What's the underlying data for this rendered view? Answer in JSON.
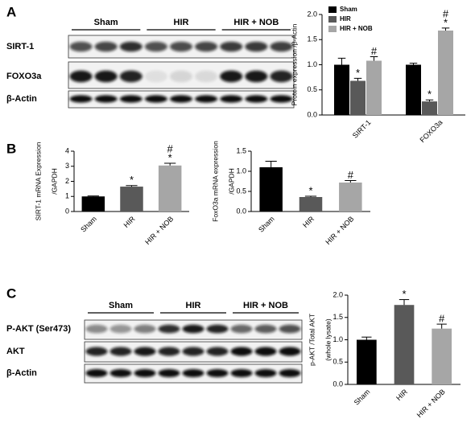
{
  "panels": [
    "A",
    "B",
    "C"
  ],
  "blots": [
    {
      "groups": [
        "Sham",
        "HIR",
        "HIR + NOB"
      ],
      "rows": [
        "SIRT-1",
        "FOXO3a",
        "β-Actin"
      ]
    },
    {
      "groups": [
        "Sham",
        "HIR",
        "HIR + NOB"
      ],
      "rows": [
        "P-AKT (Ser473)",
        "AKT",
        "β-Actin"
      ]
    }
  ],
  "chart_data": [
    {
      "type": "grouped_bar",
      "ylabel": [
        "Protein expression /β-Actin"
      ],
      "categories": [
        "SIRT-1",
        "FOXO3a"
      ],
      "series": [
        {
          "name": "Sham",
          "color": "#000000",
          "values": [
            1.0,
            1.0
          ],
          "errors": [
            0.13,
            0.03
          ]
        },
        {
          "name": "HIR",
          "color": "#595959",
          "values": [
            0.68,
            0.27
          ],
          "errors": [
            0.05,
            0.03
          ],
          "annotations": [
            [
              "*"
            ],
            [
              "*"
            ]
          ]
        },
        {
          "name": "HIR + NOB",
          "color": "#a6a6a6",
          "values": [
            1.08,
            1.68
          ],
          "errors": [
            0.08,
            0.05
          ],
          "annotations": [
            [
              "#"
            ],
            [
              "#",
              "*"
            ]
          ]
        }
      ],
      "ylim": [
        0,
        2
      ],
      "yticks": [
        {
          "value": 0,
          "label": "0.0"
        },
        0.5,
        {
          "value": 1,
          "label": "1.0"
        },
        1.5,
        {
          "value": 2,
          "label": "2.0"
        }
      ],
      "legend": "top-left"
    },
    {
      "type": "bar",
      "ylabel": [
        "SIRT-1 mRNA Expression",
        "/GAPDH"
      ],
      "categories": [
        "Sham",
        "HIR",
        "HIR + NOB"
      ],
      "values": [
        1.0,
        1.65,
        3.05
      ],
      "errors": [
        0.03,
        0.07,
        0.15
      ],
      "colors": [
        "#000000",
        "#595959",
        "#a6a6a6"
      ],
      "annotations": [
        null,
        [
          "*"
        ],
        [
          "#",
          "*"
        ]
      ],
      "ylim": [
        0,
        4
      ],
      "yticks": [
        0,
        1,
        2,
        3,
        4
      ]
    },
    {
      "type": "bar",
      "ylabel": [
        "FoxO3a mRNA expression",
        "/GAPDH"
      ],
      "categories": [
        "Sham",
        "HIR",
        "HIR + NOB"
      ],
      "values": [
        1.1,
        0.36,
        0.72
      ],
      "errors": [
        0.15,
        0.02,
        0.05
      ],
      "colors": [
        "#000000",
        "#595959",
        "#a6a6a6"
      ],
      "annotations": [
        null,
        [
          "*"
        ],
        [
          "#"
        ]
      ],
      "ylim": [
        0,
        1.5
      ],
      "yticks": [
        {
          "value": 0,
          "label": "0.0"
        },
        0.5,
        {
          "value": 1,
          "label": "1.0"
        },
        1.5
      ]
    },
    {
      "type": "bar",
      "ylabel": [
        "p-AKT /Total AKT",
        "(whole lysate)"
      ],
      "categories": [
        "Sham",
        "HIR",
        "HIR + NOB"
      ],
      "values": [
        1.0,
        1.78,
        1.25
      ],
      "errors": [
        0.06,
        0.12,
        0.1
      ],
      "colors": [
        "#000000",
        "#595959",
        "#a6a6a6"
      ],
      "annotations": [
        null,
        [
          "*"
        ],
        [
          "#"
        ]
      ],
      "ylim": [
        0,
        2
      ],
      "yticks": [
        {
          "value": 0,
          "label": "0.0"
        },
        0.5,
        {
          "value": 1,
          "label": "1.0"
        },
        1.5,
        {
          "value": 2,
          "label": "2.0"
        }
      ]
    }
  ]
}
